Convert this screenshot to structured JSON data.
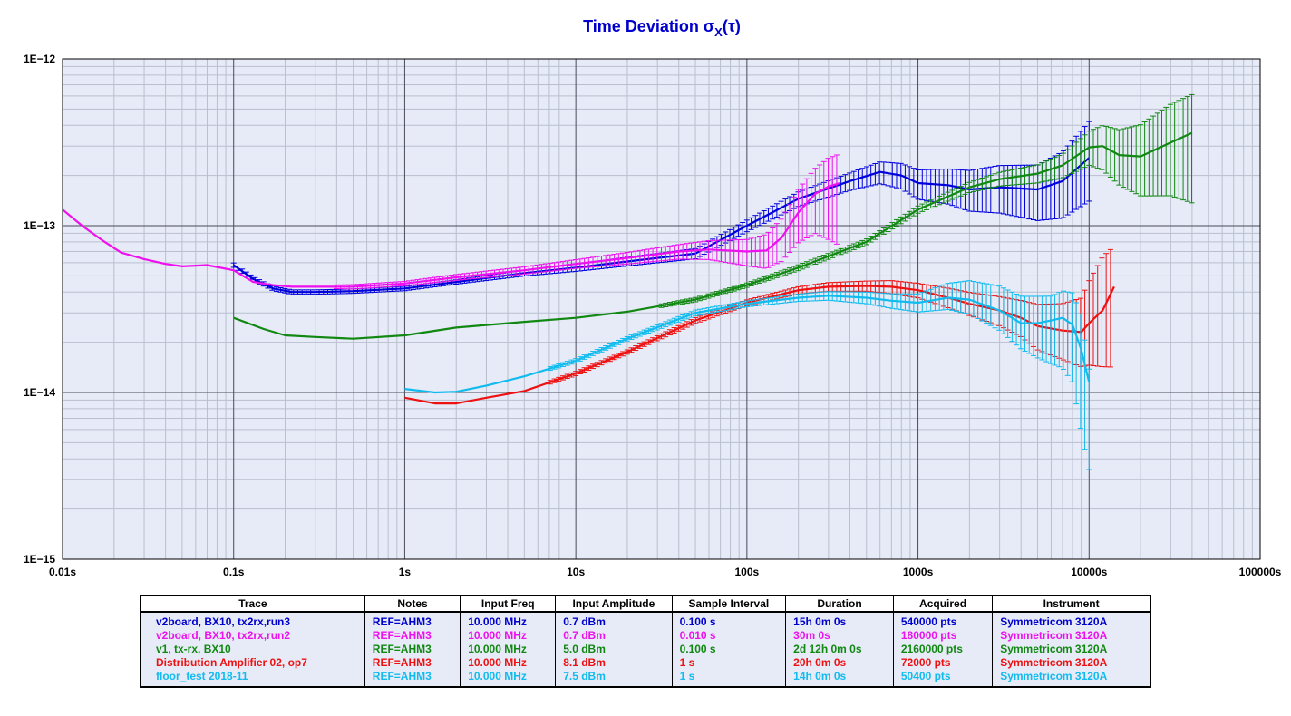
{
  "colors": {
    "plot_bg": "#e6ebf7",
    "grid_major": "#4a4a5a",
    "grid_minor": "#b9bfcf",
    "title": "#0000cc"
  },
  "chart_data": {
    "type": "line",
    "title_main": "Time Deviation σ",
    "title_sub": "X",
    "title_tail": "(τ)",
    "x_scale": "log",
    "y_scale": "log",
    "xlim": [
      0.01,
      100000
    ],
    "ylim": [
      1e-15,
      1e-12
    ],
    "x_tick_labels": [
      {
        "value": 0.01,
        "label": "0.01s"
      },
      {
        "value": 0.1,
        "label": "0.1s"
      },
      {
        "value": 1,
        "label": "1s"
      },
      {
        "value": 10,
        "label": "10s"
      },
      {
        "value": 100,
        "label": "100s"
      },
      {
        "value": 1000,
        "label": "1000s"
      },
      {
        "value": 10000,
        "label": "10000s"
      },
      {
        "value": 100000,
        "label": "100000s"
      }
    ],
    "y_tick_labels": [
      {
        "value": 1e-12,
        "label": "1E−12"
      },
      {
        "value": 1e-13,
        "label": "1E−13"
      },
      {
        "value": 1e-14,
        "label": "1E−14"
      },
      {
        "value": 1e-15,
        "label": "1E−15"
      }
    ],
    "grid": true,
    "series": [
      {
        "color": "#0000dd",
        "x": [
          0.1,
          0.13,
          0.17,
          0.22,
          0.3,
          0.5,
          1,
          2,
          5,
          10,
          20,
          50,
          100,
          200,
          400,
          600,
          800,
          1000,
          1500,
          2000,
          3000,
          5000,
          7000,
          10000
        ],
        "y": [
          5.8e-14,
          4.8e-14,
          4.2e-14,
          4e-14,
          4e-14,
          4.05e-14,
          4.2e-14,
          4.6e-14,
          5.2e-14,
          5.6e-14,
          6.1e-14,
          6.8e-14,
          1e-13,
          1.45e-13,
          1.85e-13,
          2.1e-13,
          2e-13,
          1.8e-13,
          1.75e-13,
          1.65e-13,
          1.7e-13,
          1.65e-13,
          1.85e-13,
          2.55e-13
        ],
        "err_lo": [
          0.97,
          0.97,
          0.97,
          0.97,
          0.97,
          0.97,
          0.97,
          0.97,
          0.96,
          0.95,
          0.94,
          0.93,
          0.92,
          0.9,
          0.88,
          0.85,
          0.83,
          0.8,
          0.77,
          0.74,
          0.7,
          0.65,
          0.6,
          0.55
        ],
        "err_hi": [
          1.03,
          1.03,
          1.03,
          1.03,
          1.03,
          1.03,
          1.03,
          1.03,
          1.04,
          1.05,
          1.06,
          1.07,
          1.08,
          1.1,
          1.12,
          1.15,
          1.18,
          1.2,
          1.25,
          1.3,
          1.35,
          1.4,
          1.5,
          1.65
        ]
      },
      {
        "color": "#ee10ee",
        "x": [
          0.01,
          0.013,
          0.017,
          0.022,
          0.03,
          0.04,
          0.05,
          0.07,
          0.1,
          0.13,
          0.17,
          0.22,
          0.3,
          0.5,
          1,
          2,
          5,
          10,
          20,
          40,
          60,
          100,
          130,
          160,
          200,
          250,
          300,
          350
        ],
        "y": [
          1.25e-13,
          1e-13,
          8.2e-14,
          6.9e-14,
          6.3e-14,
          5.9e-14,
          5.7e-14,
          5.8e-14,
          5.4e-14,
          4.6e-14,
          4.4e-14,
          4.3e-14,
          4.3e-14,
          4.3e-14,
          4.5e-14,
          4.9e-14,
          5.4e-14,
          5.9e-14,
          6.4e-14,
          7e-14,
          7.2e-14,
          7e-14,
          7.1e-14,
          8.5e-14,
          1.2e-13,
          1.55e-13,
          1.72e-13,
          1.8e-13
        ],
        "err_lo": [
          0.98,
          0.98,
          0.98,
          0.98,
          0.98,
          0.98,
          0.98,
          0.98,
          0.98,
          0.98,
          0.98,
          0.98,
          0.98,
          0.97,
          0.97,
          0.96,
          0.95,
          0.94,
          0.92,
          0.9,
          0.87,
          0.82,
          0.78,
          0.72,
          0.66,
          0.58,
          0.48,
          0.42
        ],
        "err_hi": [
          1.02,
          1.02,
          1.02,
          1.02,
          1.02,
          1.02,
          1.02,
          1.02,
          1.02,
          1.02,
          1.02,
          1.02,
          1.02,
          1.03,
          1.03,
          1.04,
          1.05,
          1.06,
          1.08,
          1.1,
          1.13,
          1.18,
          1.25,
          1.3,
          1.38,
          1.42,
          1.48,
          1.5
        ]
      },
      {
        "color": "#118811",
        "x": [
          0.1,
          0.15,
          0.2,
          0.3,
          0.5,
          1,
          2,
          5,
          10,
          20,
          50,
          100,
          200,
          500,
          1000,
          2000,
          3000,
          5000,
          7000,
          10000,
          12000,
          15000,
          20000,
          30000,
          40000
        ],
        "y": [
          2.8e-14,
          2.4e-14,
          2.2e-14,
          2.15e-14,
          2.1e-14,
          2.2e-14,
          2.45e-14,
          2.65e-14,
          2.8e-14,
          3.05e-14,
          3.6e-14,
          4.4e-14,
          5.6e-14,
          8e-14,
          1.25e-13,
          1.7e-13,
          1.9e-13,
          2.05e-13,
          2.3e-13,
          2.95e-13,
          3e-13,
          2.65e-13,
          2.6e-13,
          3.15e-13,
          3.6e-13
        ],
        "err_lo": [
          0.98,
          0.98,
          0.98,
          0.98,
          0.98,
          0.98,
          0.98,
          0.98,
          0.98,
          0.98,
          0.97,
          0.97,
          0.96,
          0.96,
          0.95,
          0.93,
          0.91,
          0.88,
          0.84,
          0.78,
          0.72,
          0.66,
          0.58,
          0.48,
          0.38
        ],
        "err_hi": [
          1.02,
          1.02,
          1.02,
          1.02,
          1.02,
          1.02,
          1.02,
          1.02,
          1.02,
          1.02,
          1.03,
          1.03,
          1.04,
          1.04,
          1.05,
          1.07,
          1.1,
          1.13,
          1.17,
          1.25,
          1.33,
          1.42,
          1.55,
          1.7,
          1.7
        ]
      },
      {
        "color": "#ee1111",
        "x": [
          1,
          1.5,
          2,
          3,
          5,
          10,
          20,
          50,
          100,
          200,
          300,
          500,
          700,
          1000,
          1500,
          2000,
          3000,
          4000,
          5000,
          7000,
          9000,
          10000,
          12000,
          14000
        ],
        "y": [
          9.3e-15,
          8.6e-15,
          8.6e-15,
          9.3e-15,
          1.02e-14,
          1.3e-14,
          1.75e-14,
          2.7e-14,
          3.45e-14,
          4.1e-14,
          4.3e-14,
          4.35e-14,
          4.3e-14,
          4.1e-14,
          3.7e-14,
          3.4e-14,
          3.1e-14,
          2.8e-14,
          2.5e-14,
          2.35e-14,
          2.3e-14,
          2.6e-14,
          3.1e-14,
          4.3e-14
        ],
        "err_lo": [
          0.98,
          0.98,
          0.98,
          0.98,
          0.98,
          0.97,
          0.97,
          0.96,
          0.96,
          0.95,
          0.94,
          0.93,
          0.91,
          0.9,
          0.87,
          0.85,
          0.81,
          0.77,
          0.72,
          0.67,
          0.62,
          0.56,
          0.46,
          0.33
        ],
        "err_hi": [
          1.02,
          1.02,
          1.02,
          1.02,
          1.02,
          1.03,
          1.03,
          1.04,
          1.04,
          1.05,
          1.06,
          1.07,
          1.09,
          1.1,
          1.14,
          1.17,
          1.21,
          1.27,
          1.35,
          1.45,
          1.6,
          1.8,
          2.1,
          1.75
        ]
      },
      {
        "color": "#11bbee",
        "x": [
          1,
          1.5,
          2,
          3,
          5,
          10,
          20,
          50,
          100,
          200,
          300,
          500,
          700,
          1000,
          1500,
          2000,
          3000,
          4000,
          5000,
          6000,
          7000,
          8000,
          9000,
          10000
        ],
        "y": [
          1.05e-14,
          1e-14,
          1.01e-14,
          1.1e-14,
          1.25e-14,
          1.55e-14,
          2.1e-14,
          3e-14,
          3.4e-14,
          3.7e-14,
          3.8e-14,
          3.7e-14,
          3.55e-14,
          3.45e-14,
          3.7e-14,
          3.6e-14,
          3.1e-14,
          2.6e-14,
          2.6e-14,
          2.7e-14,
          2.8e-14,
          2.55e-14,
          1.8e-14,
          1.15e-14
        ],
        "err_lo": [
          0.98,
          0.98,
          0.98,
          0.98,
          0.98,
          0.97,
          0.97,
          0.96,
          0.96,
          0.95,
          0.94,
          0.92,
          0.9,
          0.88,
          0.85,
          0.82,
          0.76,
          0.7,
          0.62,
          0.55,
          0.5,
          0.45,
          0.32,
          0.3
        ],
        "err_hi": [
          1.02,
          1.02,
          1.02,
          1.02,
          1.02,
          1.03,
          1.03,
          1.04,
          1.04,
          1.05,
          1.06,
          1.08,
          1.1,
          1.13,
          1.22,
          1.3,
          1.4,
          1.45,
          1.45,
          1.4,
          1.45,
          1.55,
          1.6,
          1.2
        ]
      }
    ]
  },
  "table": {
    "headers": [
      "Trace",
      "Notes",
      "Input Freq",
      "Input Amplitude",
      "Sample Interval",
      "Duration",
      "Acquired",
      "Instrument"
    ],
    "rows": [
      {
        "color": "#0000cc",
        "cells": [
          "v2board, BX10, tx2rx,run3",
          "REF=AHM3",
          "10.000 MHz",
          "0.7 dBm",
          "0.100 s",
          "15h 0m 0s",
          "540000 pts",
          "Symmetricom 3120A"
        ]
      },
      {
        "color": "#ee10ee",
        "cells": [
          "v2board, BX10, tx2rx,run2",
          "REF=AHM3",
          "10.000 MHz",
          "0.7 dBm",
          "0.010 s",
          "30m 0s",
          "180000 pts",
          "Symmetricom 3120A"
        ]
      },
      {
        "color": "#118811",
        "cells": [
          "v1, tx-rx, BX10",
          "REF=AHM3",
          "10.000 MHz",
          "5.0 dBm",
          "0.100 s",
          "2d 12h 0m 0s",
          "2160000 pts",
          "Symmetricom 3120A"
        ]
      },
      {
        "color": "#ee1111",
        "cells": [
          "Distribution Amplifier 02, op7",
          "REF=AHM3",
          "10.000 MHz",
          "8.1 dBm",
          "1 s",
          "20h 0m 0s",
          "72000 pts",
          "Symmetricom 3120A"
        ]
      },
      {
        "color": "#11bbee",
        "cells": [
          "floor_test 2018-11",
          "REF=AHM3",
          "10.000 MHz",
          "7.5 dBm",
          "1 s",
          "14h 0m 0s",
          "50400 pts",
          "Symmetricom 3120A"
        ]
      }
    ]
  }
}
